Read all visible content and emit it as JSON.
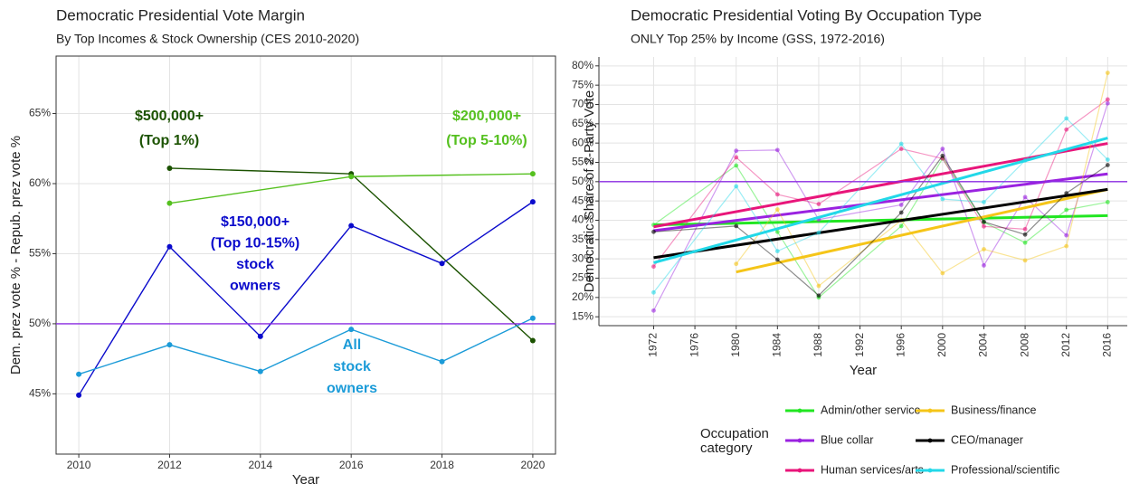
{
  "chart_data": [
    {
      "type": "line",
      "title": "Democratic Presidential Vote Margin",
      "subtitle": "By Top Incomes & Stock Ownership (CES 2010-2020)",
      "x_label": "Year",
      "y_label": "Dem. prez vote % - Repub. prez vote %",
      "xlim": [
        2009.5,
        2020.5
      ],
      "xticks": [
        2010,
        2012,
        2014,
        2016,
        2018,
        2020
      ],
      "ylim": [
        40.7,
        69.1
      ],
      "yticks": [
        {
          "value": 45,
          "label": "45%"
        },
        {
          "value": 50,
          "label": "50%"
        },
        {
          "value": 55,
          "label": "55%"
        },
        {
          "value": 60,
          "label": "60%"
        },
        {
          "value": 65,
          "label": "65%"
        }
      ],
      "grid": true,
      "hline": 50,
      "hline_color": "#8a2be2",
      "series": [
        {
          "label": [
            "$500,000+",
            "(Top 1%)"
          ],
          "color": "#1b5200",
          "x": [
            2012,
            2016,
            2020
          ],
          "values": [
            61.1,
            60.7,
            48.8
          ]
        },
        {
          "label": [
            "$200,000+",
            "(Top 5-10%)"
          ],
          "color": "#55c01f",
          "x": [
            2012,
            2016,
            2020
          ],
          "values": [
            58.6,
            60.5,
            60.7
          ]
        },
        {
          "label": [
            "$150,000+",
            "(Top 10-15%)",
            "stock",
            "owners"
          ],
          "color": "#0b0bcc",
          "x": [
            2010,
            2012,
            2014,
            2016,
            2018,
            2020
          ],
          "values": [
            44.9,
            55.5,
            49.1,
            57.0,
            54.3,
            58.7
          ]
        },
        {
          "label": [
            "All",
            "stock",
            "owners"
          ],
          "color": "#1b9bd8",
          "x": [
            2010,
            2012,
            2014,
            2016,
            2018,
            2020
          ],
          "values": [
            46.4,
            48.5,
            46.6,
            49.6,
            47.3,
            50.4
          ]
        }
      ]
    },
    {
      "type": "line",
      "title": "Democratic Presidential Voting By Occupation Type",
      "subtitle": "ONLY Top 25% by Income (GSS, 1972-2016)",
      "x_label": "Year",
      "y_label": "Democratic Share of 2-Party Vote",
      "xlim": [
        1966.7,
        2017.9
      ],
      "xticks": [
        1972,
        1976,
        1980,
        1984,
        1988,
        1992,
        1996,
        2000,
        2004,
        2008,
        2012,
        2016
      ],
      "ylim": [
        12.7,
        82.3
      ],
      "yticks": [
        {
          "value": 15,
          "label": "15%"
        },
        {
          "value": 20,
          "label": "20%"
        },
        {
          "value": 25,
          "label": "25%"
        },
        {
          "value": 30,
          "label": "30%"
        },
        {
          "value": 35,
          "label": "35%"
        },
        {
          "value": 40,
          "label": "40%"
        },
        {
          "value": 45,
          "label": "45%"
        },
        {
          "value": 50,
          "label": "50%"
        },
        {
          "value": 55,
          "label": "55%"
        },
        {
          "value": 60,
          "label": "60%"
        },
        {
          "value": 65,
          "label": "65%"
        },
        {
          "value": 70,
          "label": "70%"
        },
        {
          "value": 75,
          "label": "75%"
        },
        {
          "value": 80,
          "label": "80%"
        }
      ],
      "grid": true,
      "hline": 50,
      "hline_color": "#8a2be2",
      "legend": "bottom",
      "legend_title": [
        "Occupation",
        "category"
      ],
      "x": [
        1972,
        1980,
        1984,
        1988,
        1996,
        2000,
        2004,
        2008,
        2012,
        2016
      ],
      "series": [
        {
          "name": "Admin/other service",
          "color": "#22e622",
          "values": [
            38.8,
            54.2,
            37.0,
            20.0,
            38.5,
            56.0,
            39.5,
            34.2,
            42.7,
            44.7
          ],
          "trend": [
            38.8,
            41.2
          ]
        },
        {
          "name": "Blue collar",
          "color": "#9a22e0",
          "values": [
            16.6,
            58.0,
            58.2,
            40.2,
            44.0,
            58.5,
            28.3,
            46.0,
            36.1,
            70.3
          ],
          "trend": [
            37.3,
            52.0
          ]
        },
        {
          "name": "Human services/arts",
          "color": "#e8157a",
          "values": [
            28.0,
            56.3,
            46.7,
            44.2,
            58.5,
            56.0,
            38.4,
            37.7,
            63.5,
            71.3
          ],
          "trend": [
            38.3,
            59.9
          ]
        },
        {
          "name": "Business/finance",
          "color": "#f5c518",
          "values": [
            null,
            28.7,
            42.8,
            23.0,
            40.0,
            26.3,
            32.5,
            29.6,
            33.3,
            78.2
          ],
          "trend": [
            26.6,
            48.0
          ]
        },
        {
          "name": "CEO/manager",
          "color": "#000000",
          "values": [
            37.0,
            38.5,
            29.8,
            20.5,
            42.0,
            56.7,
            39.6,
            36.3,
            47.0,
            54.3
          ],
          "trend": [
            30.3,
            48.0
          ]
        },
        {
          "name": "Professional/scientific",
          "color": "#22d8e8",
          "values": [
            21.3,
            48.8,
            32.0,
            36.8,
            59.8,
            45.5,
            44.7,
            55.5,
            66.4,
            55.7
          ],
          "trend": [
            29.0,
            61.3
          ]
        }
      ]
    }
  ]
}
